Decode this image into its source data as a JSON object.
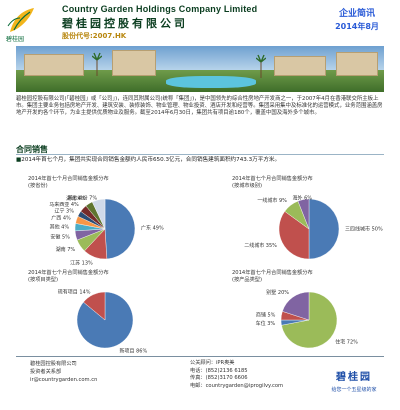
{
  "header": {
    "logo_text": "碧桂园",
    "company_en": "Country Garden Holdings Company Limited",
    "company_cn": "碧桂园控股有限公司",
    "stock_code": "股份代号:2007.HK",
    "brief_title": "企业简讯",
    "brief_date": "2014年8月"
  },
  "intro": {
    "text": "碧桂园控股有限公司(「碧桂园」或「公司」)，连同其附属公司(统称「集团」)，是中国领先的综合性房地产开发商之一，于2007年4月在香港联交所主板上市。集团主要业务包括房地产开发、建筑安装、装修装饰、物业管理、物业投资、酒店开发和经营等。集团采用集中及标准化的运营模式，业务范围涵盖房地产开发的各个环节，为业主提供优质物业及服务。截至2014年6月30日，集团共有项目逾180个，覆盖中国及海外多个城市。"
  },
  "sales": {
    "title": "合同销售",
    "bullet": "■",
    "text": "2014年首七个月，集团共实现合同销售金额约人民币650.3亿元，合同销售建筑面积约743.3万平方米。"
  },
  "charts_caption": [
    "2014年首七个月合同销售金额分布\n(按省份)",
    "2014年首七个月合同销售金额分布\n(按城市级别)",
    "2014年首七个月合同销售金额分布\n(按项目类型)",
    "2014年首七个月合同销售金额分布\n(按产品类型)"
  ],
  "chart_data": [
    {
      "type": "pie",
      "title": "2014年首七个月合同销售金额分布(按省份)",
      "slices": [
        {
          "label": "广东 49%",
          "value": 49,
          "color": "#4a7ab5"
        },
        {
          "label": "江苏 13%",
          "value": 13,
          "color": "#c0504d"
        },
        {
          "label": "湖南 7%",
          "value": 7,
          "color": "#9bbb59"
        },
        {
          "label": "安徽 5%",
          "value": 5,
          "color": "#8064a2"
        },
        {
          "label": "其他 4%",
          "value": 4,
          "color": "#4bacc6"
        },
        {
          "label": "广西 4%",
          "value": 4,
          "color": "#f79646"
        },
        {
          "label": "辽宁 3%",
          "value": 3,
          "color": "#2c4d75"
        },
        {
          "label": "马来西亚 4%",
          "value": 4,
          "color": "#772c2a"
        },
        {
          "label": "湖北 4%",
          "value": 4,
          "color": "#5f7530"
        },
        {
          "label": "其他省份 7%",
          "value": 7,
          "color": "#cfd9e9"
        }
      ]
    },
    {
      "type": "pie",
      "title": "2014年首七个月合同销售金额分布(按城市级别)",
      "slices": [
        {
          "label": "三四线城市 50%",
          "value": 50,
          "color": "#4a7ab5"
        },
        {
          "label": "二线城市 35%",
          "value": 35,
          "color": "#c0504d"
        },
        {
          "label": "一线城市 9%",
          "value": 9,
          "color": "#9bbb59"
        },
        {
          "label": "海外 6%",
          "value": 6,
          "color": "#8064a2"
        }
      ]
    },
    {
      "type": "pie",
      "title": "2014年首七个月合同销售金额分布(按项目类型)",
      "slices": [
        {
          "label": "新项目 86%",
          "value": 86,
          "color": "#4a7ab5"
        },
        {
          "label": "现有项目 14%",
          "value": 14,
          "color": "#c0504d"
        }
      ]
    },
    {
      "type": "pie",
      "title": "2014年首七个月合同销售金额分布(按产品类型)",
      "slices": [
        {
          "label": "住宅 72%",
          "value": 72,
          "color": "#9bbb59"
        },
        {
          "label": "车位 3%",
          "value": 3,
          "color": "#4a7ab5"
        },
        {
          "label": "商铺 5%",
          "value": 5,
          "color": "#c0504d"
        },
        {
          "label": "别墅 20%",
          "value": 20,
          "color": "#8064a2"
        }
      ]
    }
  ],
  "footer": {
    "left": [
      "碧桂园控股有限公司",
      "投资者关系部",
      "ir@countrygarden.com.cn"
    ],
    "mid": [
      "公关顾问：iPR奥美",
      "电话：(852)2136 6185",
      "传真：(852)3170 6606",
      "电邮：countrygarden@iprogilvy.com"
    ],
    "brand": "碧桂园",
    "slogan": "给您一个五星级的家"
  }
}
